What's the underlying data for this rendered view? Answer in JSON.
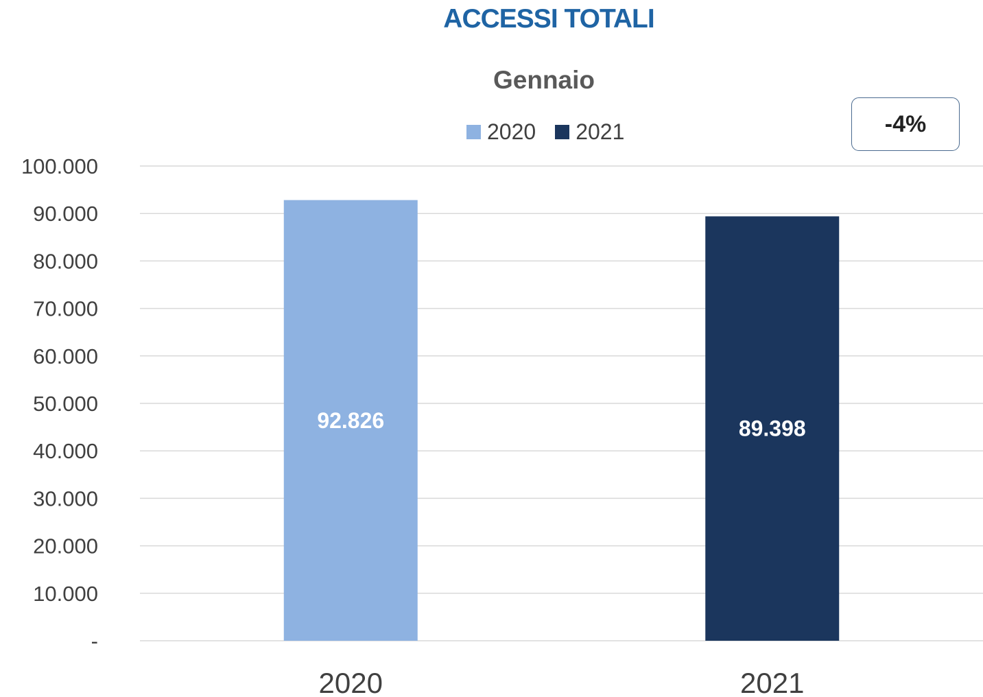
{
  "chart_data": {
    "type": "bar",
    "title": "ACCESSI TOTALI",
    "subtitle": "Gennaio",
    "categories": [
      "2020",
      "2021"
    ],
    "values": [
      92826,
      89398
    ],
    "value_labels": [
      "92.826",
      "89.398"
    ],
    "bar_colors": [
      "#8eb2e1",
      "#1b365d"
    ],
    "legend": {
      "placement": "top",
      "entries": [
        {
          "name": "2020",
          "color": "#8eb2e1"
        },
        {
          "name": "2021",
          "color": "#1b365d"
        }
      ]
    },
    "ylim": [
      0,
      100000
    ],
    "yticks": [
      0,
      10000,
      20000,
      30000,
      40000,
      50000,
      60000,
      70000,
      80000,
      90000,
      100000
    ],
    "ytick_labels": [
      "-",
      "10.000",
      "20.000",
      "30.000",
      "40.000",
      "50.000",
      "60.000",
      "70.000",
      "80.000",
      "90.000",
      "100.000"
    ],
    "grid": true,
    "annotation": "-4%",
    "xlabel": "",
    "ylabel": ""
  },
  "colors": {
    "title": "#1f64a4",
    "subtitle": "#595959",
    "gridline": "#d9d9d9",
    "axis_text": "#404040"
  }
}
